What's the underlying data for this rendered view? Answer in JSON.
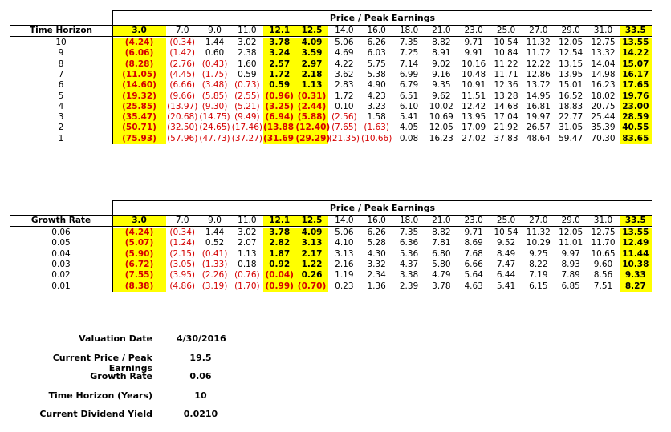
{
  "table1": {
    "title": "Price / Peak Earnings",
    "row_label": "Time Horizon",
    "columns": [
      "3.0",
      "7.0",
      "9.0",
      "11.0",
      "12.1",
      "12.5",
      "14.0",
      "16.0",
      "18.0",
      "21.0",
      "23.0",
      "25.0",
      "27.0",
      "29.0",
      "31.0",
      "33.5"
    ],
    "rows": [
      {
        "label": "10",
        "cells": [
          "(4.24)",
          "(0.34)",
          "1.44",
          "3.02",
          "3.78",
          "4.09",
          "5.06",
          "6.26",
          "7.35",
          "8.82",
          "9.71",
          "10.54",
          "11.32",
          "12.05",
          "12.75",
          "13.55"
        ]
      },
      {
        "label": "9",
        "cells": [
          "(6.06)",
          "(1.42)",
          "0.60",
          "2.38",
          "3.24",
          "3.59",
          "4.69",
          "6.03",
          "7.25",
          "8.91",
          "9.91",
          "10.84",
          "11.72",
          "12.54",
          "13.32",
          "14.22"
        ]
      },
      {
        "label": "8",
        "cells": [
          "(8.28)",
          "(2.76)",
          "(0.43)",
          "1.60",
          "2.57",
          "2.97",
          "4.22",
          "5.75",
          "7.14",
          "9.02",
          "10.16",
          "11.22",
          "12.22",
          "13.15",
          "14.04",
          "15.07"
        ]
      },
      {
        "label": "7",
        "cells": [
          "(11.05)",
          "(4.45)",
          "(1.75)",
          "0.59",
          "1.72",
          "2.18",
          "3.62",
          "5.38",
          "6.99",
          "9.16",
          "10.48",
          "11.71",
          "12.86",
          "13.95",
          "14.98",
          "16.17"
        ]
      },
      {
        "label": "6",
        "cells": [
          "(14.60)",
          "(6.66)",
          "(3.48)",
          "(0.73)",
          "0.59",
          "1.13",
          "2.83",
          "4.90",
          "6.79",
          "9.35",
          "10.91",
          "12.36",
          "13.72",
          "15.01",
          "16.23",
          "17.65"
        ]
      },
      {
        "label": "5",
        "cells": [
          "(19.32)",
          "(9.66)",
          "(5.85)",
          "(2.55)",
          "(0.96)",
          "(0.31)",
          "1.72",
          "4.23",
          "6.51",
          "9.62",
          "11.51",
          "13.28",
          "14.95",
          "16.52",
          "18.02",
          "19.76"
        ]
      },
      {
        "label": "4",
        "cells": [
          "(25.85)",
          "(13.97)",
          "(9.30)",
          "(5.21)",
          "(3.25)",
          "(2.44)",
          "0.10",
          "3.23",
          "6.10",
          "10.02",
          "12.42",
          "14.68",
          "16.81",
          "18.83",
          "20.75",
          "23.00"
        ]
      },
      {
        "label": "3",
        "cells": [
          "(35.47)",
          "(20.68)",
          "(14.75)",
          "(9.49)",
          "(6.94)",
          "(5.88)",
          "(2.56)",
          "1.58",
          "5.41",
          "10.69",
          "13.95",
          "17.04",
          "19.97",
          "22.77",
          "25.44",
          "28.59"
        ]
      },
      {
        "label": "2",
        "cells": [
          "(50.71)",
          "(32.50)",
          "(24.65)",
          "(17.46)",
          "(13.88)",
          "(12.40)",
          "(7.65)",
          "(1.63)",
          "4.05",
          "12.05",
          "17.09",
          "21.92",
          "26.57",
          "31.05",
          "35.39",
          "40.55"
        ]
      },
      {
        "label": "1",
        "cells": [
          "(75.93)",
          "(57.96)",
          "(47.73)",
          "(37.27)",
          "(31.69)",
          "(29.29)",
          "(21.35)",
          "(10.66)",
          "0.08",
          "16.23",
          "27.02",
          "37.83",
          "48.64",
          "59.47",
          "70.30",
          "83.65"
        ]
      }
    ]
  },
  "table2": {
    "title": "Price / Peak Earnings",
    "row_label": "Growth Rate",
    "columns": [
      "3.0",
      "7.0",
      "9.0",
      "11.0",
      "12.1",
      "12.5",
      "14.0",
      "16.0",
      "18.0",
      "21.0",
      "23.0",
      "25.0",
      "27.0",
      "29.0",
      "31.0",
      "33.5"
    ],
    "rows": [
      {
        "label": "0.06",
        "cells": [
          "(4.24)",
          "(0.34)",
          "1.44",
          "3.02",
          "3.78",
          "4.09",
          "5.06",
          "6.26",
          "7.35",
          "8.82",
          "9.71",
          "10.54",
          "11.32",
          "12.05",
          "12.75",
          "13.55"
        ]
      },
      {
        "label": "0.05",
        "cells": [
          "(5.07)",
          "(1.24)",
          "0.52",
          "2.07",
          "2.82",
          "3.13",
          "4.10",
          "5.28",
          "6.36",
          "7.81",
          "8.69",
          "9.52",
          "10.29",
          "11.01",
          "11.70",
          "12.49"
        ]
      },
      {
        "label": "0.04",
        "cells": [
          "(5.90)",
          "(2.15)",
          "(0.41)",
          "1.13",
          "1.87",
          "2.17",
          "3.13",
          "4.30",
          "5.36",
          "6.80",
          "7.68",
          "8.49",
          "9.25",
          "9.97",
          "10.65",
          "11.44"
        ]
      },
      {
        "label": "0.03",
        "cells": [
          "(6.72)",
          "(3.05)",
          "(1.33)",
          "0.18",
          "0.92",
          "1.22",
          "2.16",
          "3.32",
          "4.37",
          "5.80",
          "6.66",
          "7.47",
          "8.22",
          "8.93",
          "9.60",
          "10.38"
        ]
      },
      {
        "label": "0.02",
        "cells": [
          "(7.55)",
          "(3.95)",
          "(2.26)",
          "(0.76)",
          "(0.04)",
          "0.26",
          "1.19",
          "2.34",
          "3.38",
          "4.79",
          "5.64",
          "6.44",
          "7.19",
          "7.89",
          "8.56",
          "9.33"
        ]
      },
      {
        "label": "0.01",
        "cells": [
          "(8.38)",
          "(4.86)",
          "(3.19)",
          "(1.70)",
          "(0.99)",
          "(0.70)",
          "0.23",
          "1.36",
          "2.39",
          "3.78",
          "4.63",
          "5.41",
          "6.15",
          "6.85",
          "7.51",
          "8.27"
        ]
      }
    ]
  },
  "summary": [
    {
      "label": "Valuation Date",
      "value": "4/30/2016"
    },
    {
      "label": "Current Price / Peak Earnings",
      "value": "19.5"
    },
    {
      "label": "Growth Rate",
      "value": "0.06"
    },
    {
      "label": "Time Horizon (Years)",
      "value": "10"
    },
    {
      "label": "Current Dividend Yield",
      "value": "0.0210"
    }
  ],
  "colors": {
    "highlight": "#ffff00",
    "negative": "#d40000"
  }
}
